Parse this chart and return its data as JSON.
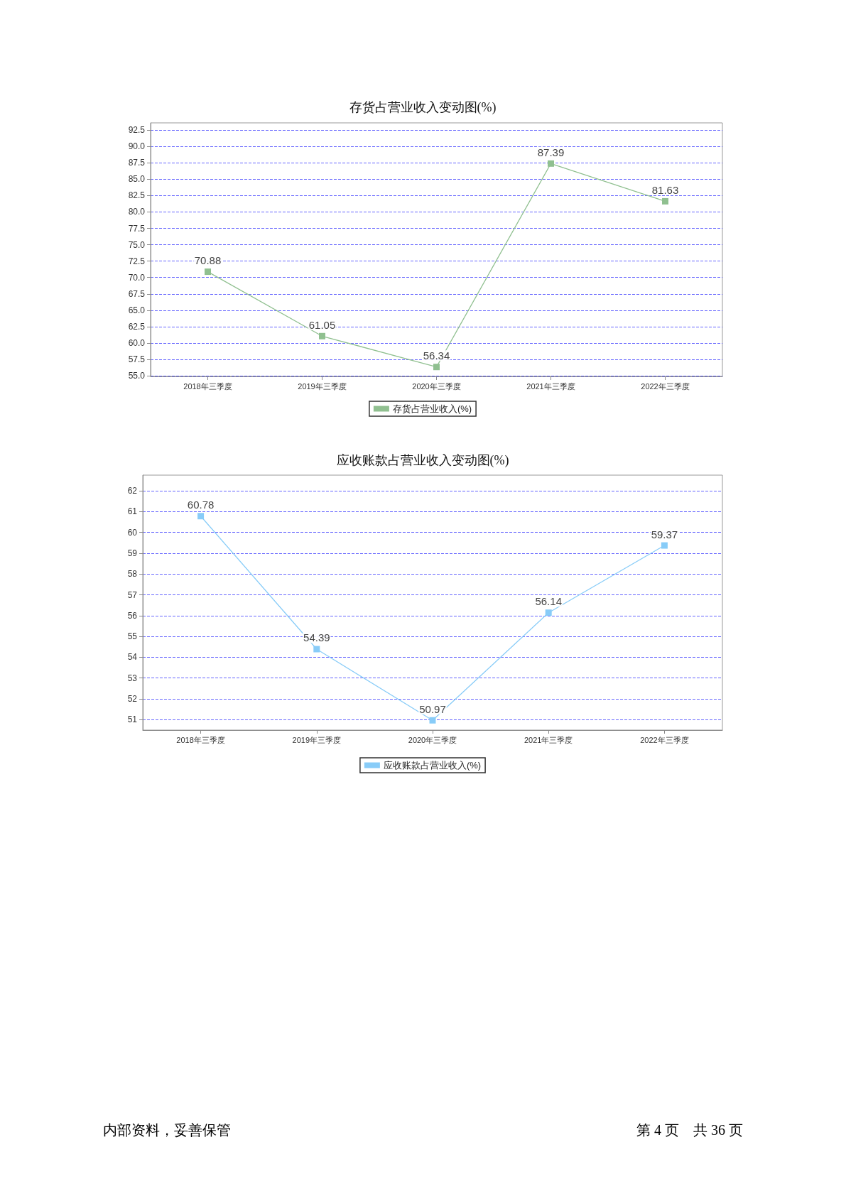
{
  "chart_data": [
    {
      "type": "line",
      "title": "存货占营业收入变动图(%)",
      "categories": [
        "2018年三季度",
        "2019年三季度",
        "2020年三季度",
        "2021年三季度",
        "2022年三季度"
      ],
      "series": [
        {
          "name": "存货占营业收入(%)",
          "color": "#90c090",
          "values": [
            70.88,
            61.05,
            56.34,
            87.39,
            81.63
          ]
        }
      ],
      "ylim": [
        54.9,
        93.6
      ],
      "yticks": [
        {
          "value": 55,
          "label": "55.0"
        },
        57.5,
        {
          "value": 60,
          "label": "60.0"
        },
        62.5,
        {
          "value": 65,
          "label": "65.0"
        },
        67.5,
        {
          "value": 70,
          "label": "70.0"
        },
        72.5,
        {
          "value": 75,
          "label": "75.0"
        },
        77.5,
        {
          "value": 80,
          "label": "80.0"
        },
        82.5,
        {
          "value": 85,
          "label": "85.0"
        },
        87.5,
        {
          "value": 90,
          "label": "90.0"
        },
        92.5
      ],
      "grid": "y",
      "legend": "bottom",
      "marker": "square",
      "data_labels": true
    },
    {
      "type": "line",
      "title": "应收账款占营业收入变动图(%)",
      "categories": [
        "2018年三季度",
        "2019年三季度",
        "2020年三季度",
        "2021年三季度",
        "2022年三季度"
      ],
      "series": [
        {
          "name": "应收账款占营业收入(%)",
          "color": "#88ccf8",
          "values": [
            60.78,
            54.39,
            50.97,
            56.14,
            59.37
          ]
        }
      ],
      "ylim": [
        50.5,
        62.75
      ],
      "yticks": [
        51,
        52,
        53,
        54,
        55,
        56,
        57,
        58,
        59,
        60,
        61,
        62
      ],
      "grid": "y",
      "legend": "bottom",
      "marker": "square",
      "data_labels": true,
      "annotations": [
        "内部资料，妥善保管",
        "第 4 页　共 36 页"
      ]
    }
  ]
}
